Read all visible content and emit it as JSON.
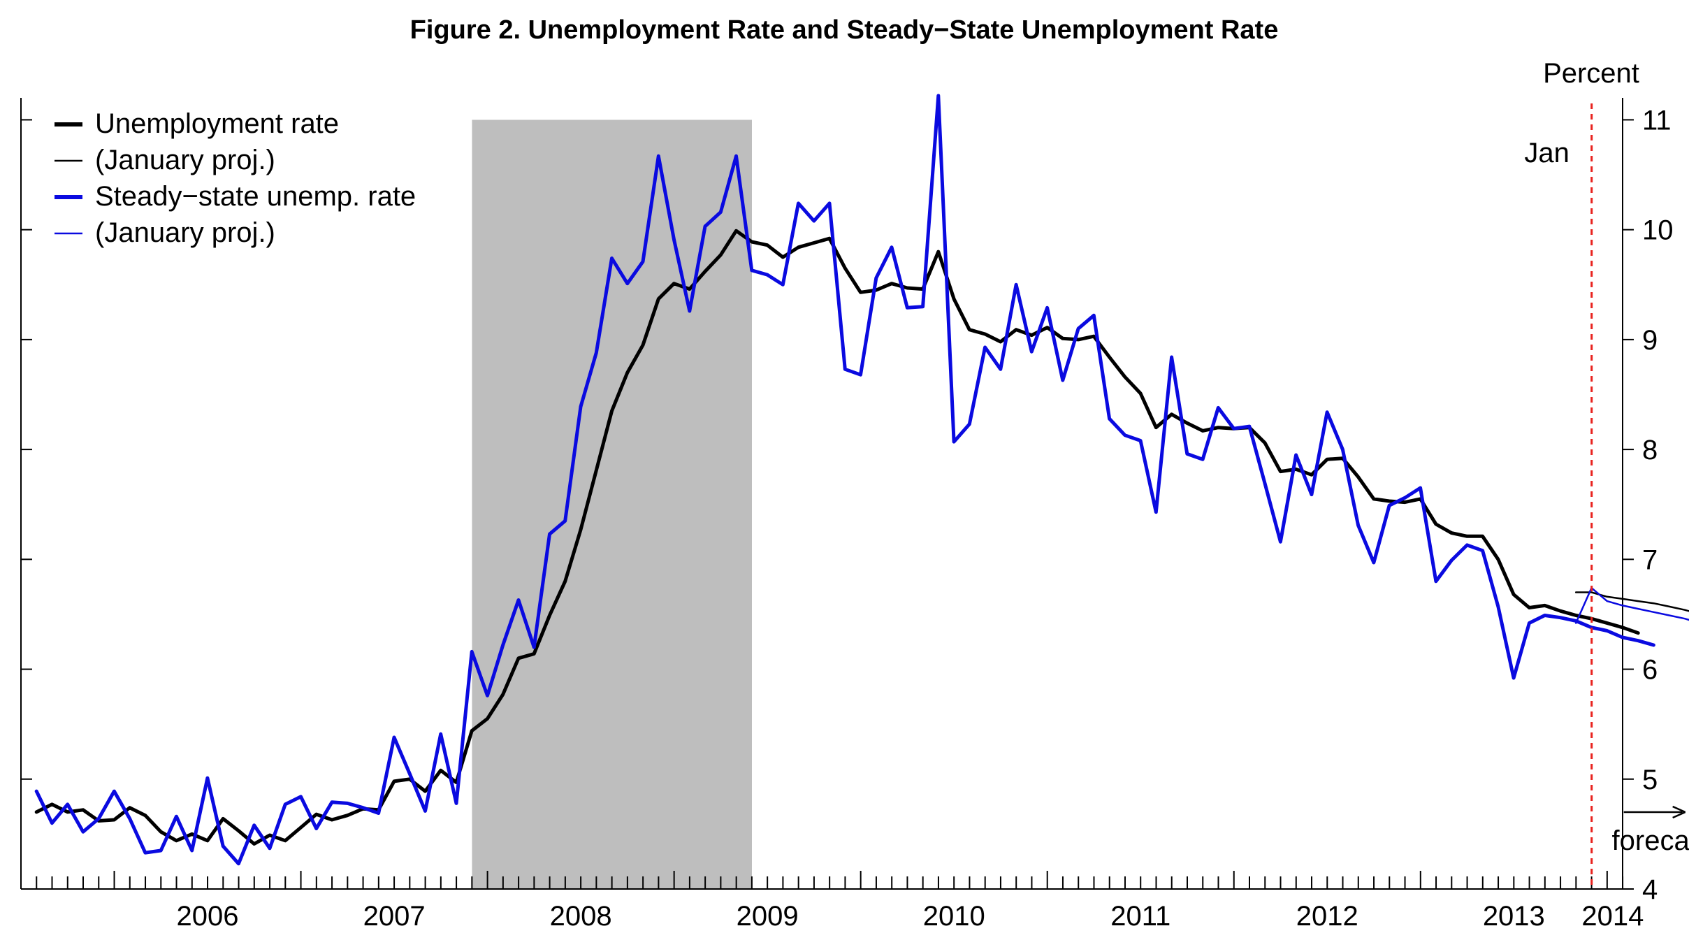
{
  "chart_data": {
    "type": "line",
    "title": "Figure 2. Unemployment Rate and Steady−State Unemployment Rate",
    "ylabel": "Percent",
    "ylim": [
      4,
      11.2
    ],
    "yticks": [
      4,
      5,
      6,
      7,
      8,
      9,
      10,
      11
    ],
    "xlim": [
      2005.5,
      2014.083
    ],
    "year_labels": [
      "2006",
      "2007",
      "2008",
      "2009",
      "2010",
      "2011",
      "2012",
      "2013",
      "2014"
    ],
    "recession": {
      "start": 2007.917,
      "end": 2009.417
    },
    "jan_line": {
      "x": 2013.917,
      "label": "Jan",
      "color": "#e8231f"
    },
    "forecast_label": "forecast",
    "legend": {
      "position": "top-left",
      "entries": [
        {
          "label": "Unemployment rate",
          "color": "#000000",
          "weight": "thick"
        },
        {
          "label": "(January proj.)",
          "color": "#000000",
          "weight": "thin"
        },
        {
          "label": "Steady−state unemp. rate",
          "color": "#0a0ae0",
          "weight": "thick"
        },
        {
          "label": "(January proj.)",
          "color": "#0a0ae0",
          "weight": "thin"
        }
      ]
    },
    "series": [
      {
        "name": "Unemployment rate",
        "color": "#000000",
        "start": 2005.583,
        "step": 0.08333,
        "values": [
          4.7,
          4.77,
          4.7,
          4.72,
          4.62,
          4.63,
          4.74,
          4.67,
          4.52,
          4.44,
          4.5,
          4.44,
          4.64,
          4.53,
          4.41,
          4.49,
          4.44,
          4.56,
          4.68,
          4.63,
          4.67,
          4.73,
          4.72,
          4.98,
          5.0,
          4.89,
          5.08,
          4.97,
          5.44,
          5.55,
          5.77,
          6.1,
          6.14,
          6.49,
          6.8,
          7.27,
          7.81,
          8.35,
          8.7,
          8.95,
          9.37,
          9.51,
          9.46,
          9.62,
          9.77,
          9.99,
          9.89,
          9.86,
          9.75,
          9.84,
          9.88,
          9.92,
          9.65,
          9.43,
          9.45,
          9.51,
          9.47,
          9.46,
          9.8,
          9.37,
          9.09,
          9.05,
          8.98,
          9.09,
          9.04,
          9.11,
          9.01,
          9.0,
          9.03,
          8.84,
          8.66,
          8.51,
          8.2,
          8.32,
          8.24,
          8.17,
          8.2,
          8.19,
          8.2,
          8.06,
          7.8,
          7.82,
          7.77,
          7.91,
          7.92,
          7.75,
          7.55,
          7.53,
          7.52,
          7.55,
          7.32,
          7.24,
          7.21,
          7.21,
          7.0,
          6.68,
          6.56,
          6.58,
          6.53,
          6.49,
          6.46,
          6.42,
          6.38,
          6.33
        ]
      },
      {
        "name": "(January proj.)",
        "color": "#000000",
        "start": 2013.833,
        "step": 0.08333,
        "values": [
          6.7,
          6.7,
          6.66,
          6.64,
          6.62,
          6.6,
          6.57,
          6.54,
          6.5
        ]
      },
      {
        "name": "Steady−state unemp. rate",
        "color": "#0a0ae0",
        "start": 2005.583,
        "step": 0.08333,
        "values": [
          4.89,
          4.6,
          4.77,
          4.52,
          4.64,
          4.89,
          4.64,
          4.33,
          4.35,
          4.66,
          4.35,
          5.01,
          4.39,
          4.23,
          4.58,
          4.37,
          4.77,
          4.84,
          4.55,
          4.79,
          4.78,
          4.74,
          4.69,
          5.38,
          5.05,
          4.71,
          5.41,
          4.78,
          6.16,
          5.76,
          6.22,
          6.63,
          6.2,
          7.23,
          7.35,
          8.39,
          8.88,
          9.74,
          9.51,
          9.71,
          10.67,
          9.91,
          9.26,
          10.03,
          10.16,
          10.67,
          9.63,
          9.59,
          9.5,
          10.24,
          10.08,
          10.24,
          8.73,
          8.68,
          9.56,
          9.84,
          9.29,
          9.3,
          11.22,
          8.07,
          8.23,
          8.93,
          8.73,
          9.5,
          8.89,
          9.29,
          8.63,
          9.1,
          9.22,
          8.28,
          8.13,
          8.08,
          7.43,
          8.84,
          7.96,
          7.91,
          8.38,
          8.19,
          8.21,
          7.69,
          7.16,
          7.95,
          7.59,
          8.34,
          8.0,
          7.31,
          6.97,
          7.49,
          7.56,
          7.65,
          6.8,
          6.99,
          7.13,
          7.08,
          6.57,
          5.92,
          6.42,
          6.49,
          6.47,
          6.44,
          6.38,
          6.35,
          6.29,
          6.26,
          6.22
        ]
      },
      {
        "name": "(January proj.)",
        "color": "#0a0ae0",
        "start": 2013.833,
        "step": 0.08333,
        "values": [
          6.42,
          6.74,
          6.62,
          6.58,
          6.55,
          6.52,
          6.49,
          6.46,
          6.42
        ]
      }
    ]
  }
}
